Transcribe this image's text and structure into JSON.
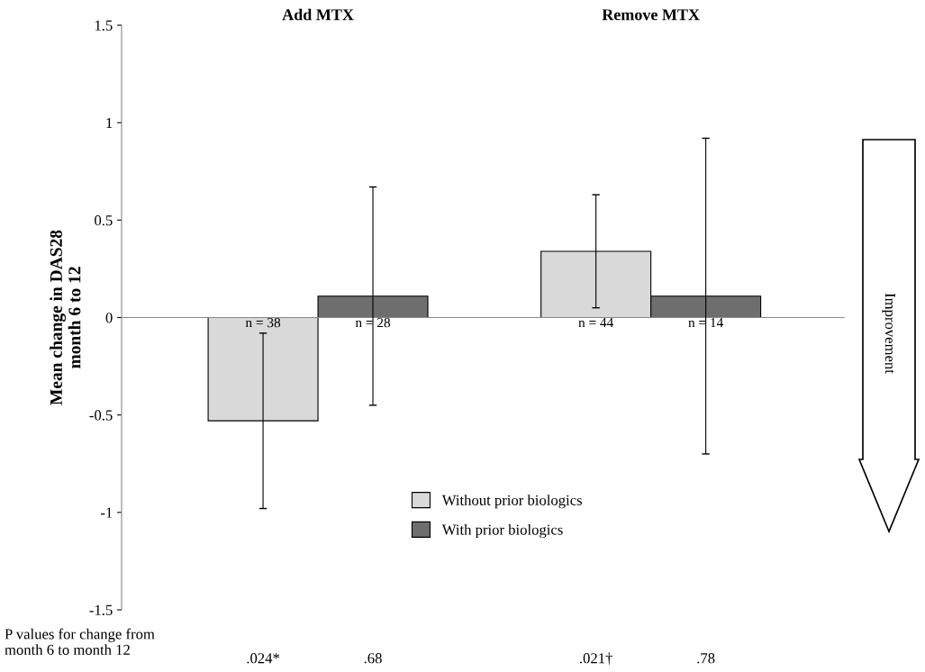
{
  "chart_data": {
    "type": "bar",
    "categories": [
      "Add MTX",
      "Remove MTX"
    ],
    "ylabel": "Mean change in DAS28\nmonth 6 to 12",
    "ylim": [
      -1.5,
      1.5
    ],
    "yticks": [
      -1.5,
      -1,
      -0.5,
      0,
      0.5,
      1,
      1.5
    ],
    "series": [
      {
        "name": "Without prior biologics",
        "color": "#d9d9d9",
        "values": [
          -0.53,
          0.34
        ],
        "errors": [
          [
            -0.98,
            -0.08
          ],
          [
            0.05,
            0.63
          ]
        ]
      },
      {
        "name": "With prior biologics",
        "color": "#6e6e6e",
        "values": [
          0.11,
          0.11
        ],
        "errors": [
          [
            -0.45,
            0.67
          ],
          [
            -0.7,
            0.92
          ]
        ]
      }
    ],
    "annotations": [
      "P values for change from\nmonth 6 to month 12",
      ".024*",
      ".68",
      ".021†",
      ".78",
      "Improvement",
      "n = 38",
      "n = 28",
      "n = 44",
      "n = 14"
    ],
    "legend": "bottom"
  }
}
